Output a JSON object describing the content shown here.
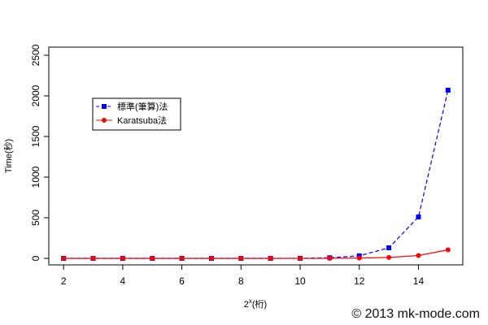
{
  "chart_data": {
    "type": "line",
    "title": "",
    "xlabel_base": "2",
    "xlabel_exp": "x",
    "xlabel_suffix": "(桁)",
    "ylabel": "Time(秒)",
    "xlim": [
      1.5,
      15.5
    ],
    "ylim": [
      -80,
      2600
    ],
    "xticks": [
      2,
      4,
      6,
      8,
      10,
      12,
      14
    ],
    "yticks": [
      0,
      500,
      1000,
      1500,
      2000,
      2500
    ],
    "x": [
      2,
      3,
      4,
      5,
      6,
      7,
      8,
      9,
      10,
      11,
      12,
      13,
      14,
      15
    ],
    "grid": false,
    "legend_position": "top-left",
    "series": [
      {
        "name": "標準(筆算)法",
        "color": "#0000ff",
        "line_style": "dashed",
        "marker": "square",
        "values": [
          0,
          0,
          0,
          0,
          0,
          0,
          0,
          0,
          1,
          8,
          32,
          130,
          510,
          2070
        ]
      },
      {
        "name": "Karatsuba法",
        "color": "#ff0000",
        "line_style": "solid",
        "marker": "circle",
        "values": [
          0,
          0,
          0,
          0,
          0,
          0,
          0,
          0,
          0,
          1,
          4,
          11,
          35,
          105
        ]
      }
    ]
  },
  "credit": "© 2013 mk-mode.com"
}
